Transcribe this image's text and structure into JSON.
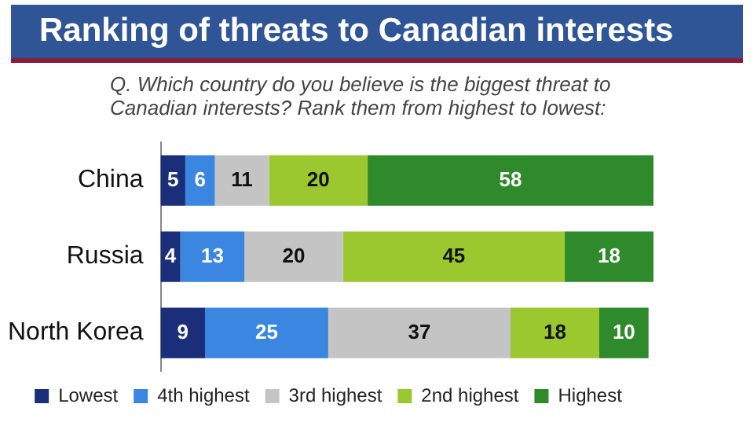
{
  "chart_data": {
    "type": "bar",
    "orientation": "horizontal",
    "stacked": true,
    "title": "Ranking of threats to Canadian interests",
    "subtitle": "Q. Which country do you believe is the biggest threat to Canadian interests? Rank them from highest to lowest:",
    "categories": [
      "China",
      "Russia",
      "North Korea"
    ],
    "series": [
      {
        "name": "Lowest",
        "color": "#1a2e7a",
        "values": [
          5,
          4,
          9
        ]
      },
      {
        "name": "4th highest",
        "color": "#3a86e0",
        "values": [
          6,
          13,
          25
        ]
      },
      {
        "name": "3rd highest",
        "color": "#c4c4c4",
        "values": [
          11,
          20,
          37
        ]
      },
      {
        "name": "2nd highest",
        "color": "#9bc72f",
        "values": [
          20,
          45,
          18
        ]
      },
      {
        "name": "Highest",
        "color": "#2e8a2a",
        "values": [
          58,
          18,
          10
        ]
      }
    ],
    "xlim": [
      0,
      100
    ],
    "data_labels": true,
    "legend": "bottom",
    "tick_labels": "y"
  }
}
